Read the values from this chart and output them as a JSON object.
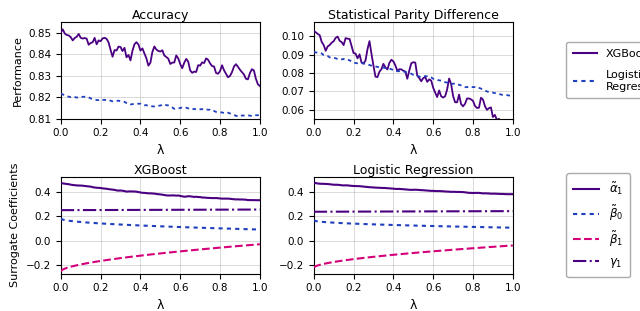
{
  "colors": {
    "purple": "#4B0082",
    "blue": "#1F3FBF",
    "pink": "#D4007A"
  },
  "top_left_title": "Accuracy",
  "top_right_title": "Statistical Parity Difference",
  "bottom_left_title": "XGBoost",
  "bottom_right_title": "Logistic Regression",
  "xlabel": "λ",
  "ylabel_top": "Performance",
  "ylabel_bottom": "Surrogate Coefficients",
  "acc_ylim": [
    0.81,
    0.855
  ],
  "spd_ylim": [
    0.055,
    0.108
  ],
  "coef_ylim": [
    -0.27,
    0.52
  ],
  "acc_yticks": [
    0.81,
    0.82,
    0.83,
    0.84,
    0.85
  ],
  "spd_yticks": [
    0.06,
    0.07,
    0.08,
    0.09,
    0.1
  ],
  "coef_yticks": [
    -0.2,
    0.0,
    0.2,
    0.4
  ],
  "xticks": [
    0.0,
    0.2,
    0.4,
    0.6,
    0.8,
    1.0
  ],
  "n_points": 101
}
